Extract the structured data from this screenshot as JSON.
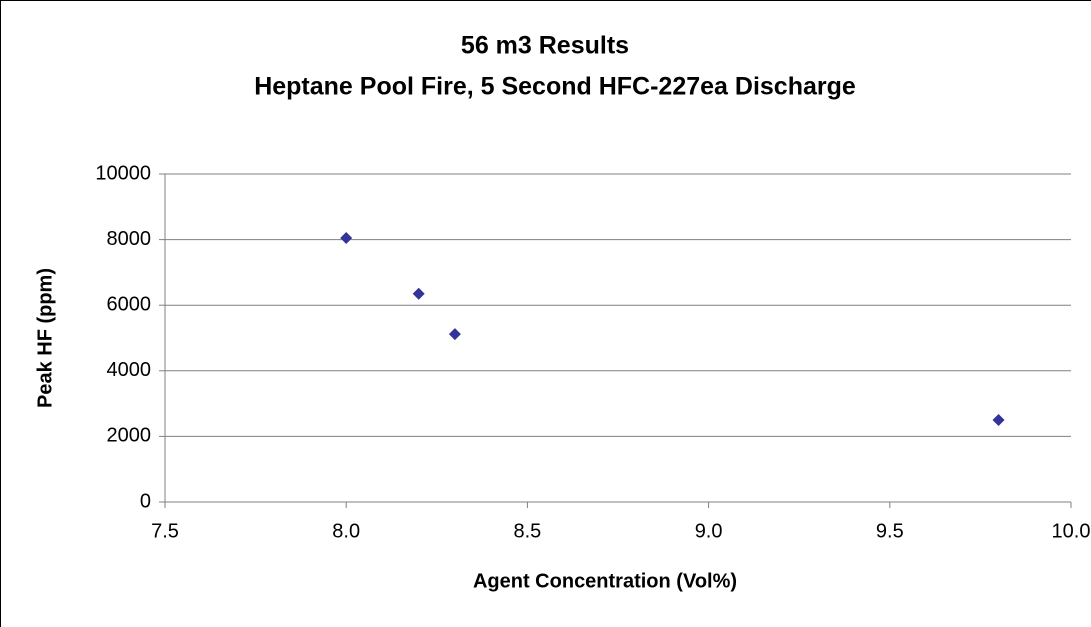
{
  "chart_data": {
    "type": "scatter",
    "title": "56 m3 Results",
    "subtitle": "Heptane Pool Fire, 5 Second HFC-227ea Discharge",
    "x_label": "Agent Concentration (Vol%)",
    "y_label": "Peak HF (ppm)",
    "series": [
      {
        "name": "Peak HF",
        "color": "#333399",
        "x": [
          8.0,
          8.2,
          8.3,
          9.8
        ],
        "values": [
          8050,
          6350,
          5120,
          2500
        ]
      }
    ],
    "xlim": [
      7.5,
      10.0
    ],
    "xticks": [
      7.5,
      {
        "value": 8,
        "label": "8.0"
      },
      8.5,
      {
        "value": 9,
        "label": "9.0"
      },
      9.5,
      {
        "value": 10,
        "label": "10.0"
      }
    ],
    "ylim": [
      0,
      10000
    ],
    "yticks": [
      0,
      2000,
      4000,
      6000,
      8000,
      10000
    ],
    "grid": true
  }
}
